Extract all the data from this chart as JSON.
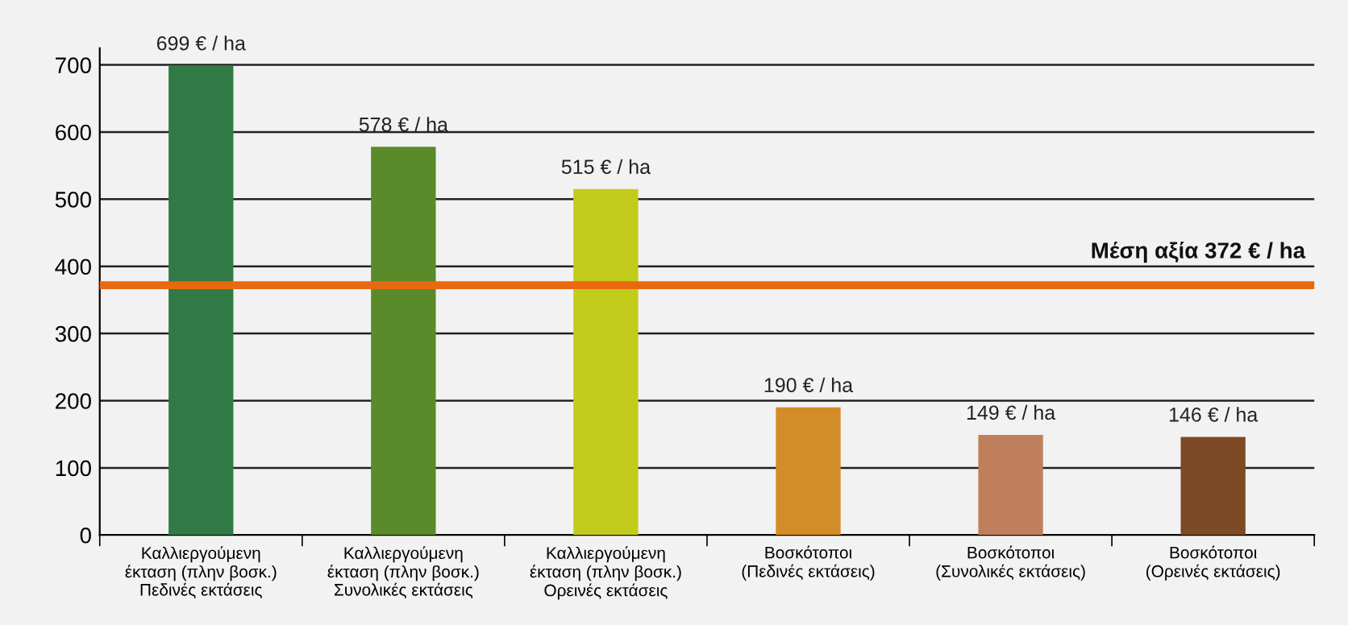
{
  "chart_data": {
    "type": "bar",
    "categories": [
      "Καλλιεργούμενη\nέκταση (πλην βοσκ.)\nΠεδινές εκτάσεις",
      "Καλλιεργούμενη\nέκταση (πλην βοσκ.)\nΣυνολικές εκτάσεις",
      "Καλλιεργούμενη\nέκταση (πλην βοσκ.)\nΟρεινές εκτάσεις",
      "Βοσκότοποι\n(Πεδινές εκτάσεις)",
      "Βοσκότοποι\n(Συνολικές εκτάσεις)",
      "Βοσκότοποι\n(Ορεινές εκτάσεις)"
    ],
    "values": [
      699,
      578,
      515,
      190,
      149,
      146
    ],
    "value_labels": [
      "699 € / ha",
      "578 € / ha",
      "515 € / ha",
      "190 € / ha",
      "149 € / ha",
      "146 € / ha"
    ],
    "colors": [
      "#317a45",
      "#5a8a2a",
      "#c3cb1a",
      "#d28c2a",
      "#c07f5c",
      "#7e4a26"
    ],
    "ylim": [
      0,
      725
    ],
    "yticks": [
      0,
      100,
      200,
      300,
      400,
      500,
      600,
      700
    ],
    "grid": "y",
    "ref_lines": [
      {
        "axis": "y",
        "value": 372,
        "label": "Μέση αξία 372 € / ha",
        "color": "#e8690f",
        "line_style": "solid"
      }
    ]
  }
}
